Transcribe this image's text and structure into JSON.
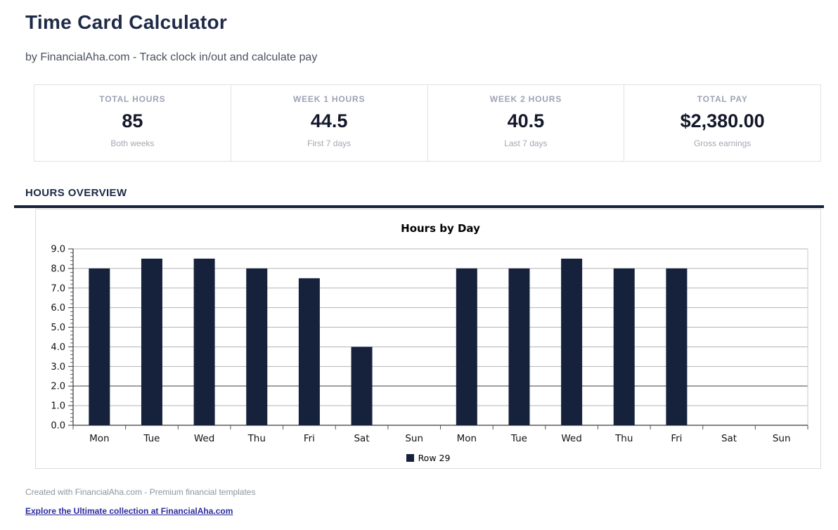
{
  "page": {
    "title": "Time Card Calculator",
    "subtitle": "by FinancialAha.com - Track clock in/out and calculate pay"
  },
  "stats": {
    "cards": [
      {
        "label": "TOTAL HOURS",
        "value": "85",
        "sublabel": "Both weeks"
      },
      {
        "label": "WEEK 1 HOURS",
        "value": "44.5",
        "sublabel": "First 7 days"
      },
      {
        "label": "WEEK 2 HOURS",
        "value": "40.5",
        "sublabel": "Last 7 days"
      },
      {
        "label": "TOTAL PAY",
        "value": "$2,380.00",
        "sublabel": "Gross earnings"
      }
    ]
  },
  "section": {
    "heading": "HOURS OVERVIEW"
  },
  "chart_data": {
    "type": "bar",
    "title": "Hours by Day",
    "categories": [
      "Mon",
      "Tue",
      "Wed",
      "Thu",
      "Fri",
      "Sat",
      "Sun",
      "Mon",
      "Tue",
      "Wed",
      "Thu",
      "Fri",
      "Sat",
      "Sun"
    ],
    "values": [
      8,
      8.5,
      8.5,
      8,
      7.5,
      4,
      0,
      8,
      8,
      8.5,
      8,
      8,
      0,
      0
    ],
    "series": [
      {
        "name": "Row 29",
        "values": [
          8,
          8.5,
          8.5,
          8,
          7.5,
          4,
          0,
          8,
          8,
          8.5,
          8,
          8,
          0,
          0
        ]
      }
    ],
    "legend": [
      "Row 29"
    ],
    "legend_position": "bottom-center",
    "xlabel": "",
    "ylabel": "",
    "ylim": [
      0,
      9
    ],
    "ytick_step": 1,
    "ytick_labels": [
      "0.0",
      "1.0",
      "2.0",
      "3.0",
      "4.0",
      "5.0",
      "6.0",
      "7.0",
      "8.0",
      "9.0"
    ],
    "grid": true,
    "emphasized_gridline_at": 2,
    "bar_color": "#16223C"
  },
  "footer": {
    "credit": "Created with FinancialAha.com - Premium financial templates",
    "link": "Explore the Ultimate collection at FinancialAha.com"
  },
  "colors": {
    "heading": "#1E2A47",
    "accent_rule": "#16223C",
    "bar": "#16223C",
    "gridline": "#B5B5B5",
    "gridline_emphasis": "#8A8A8A",
    "link": "#2B2B9E"
  }
}
